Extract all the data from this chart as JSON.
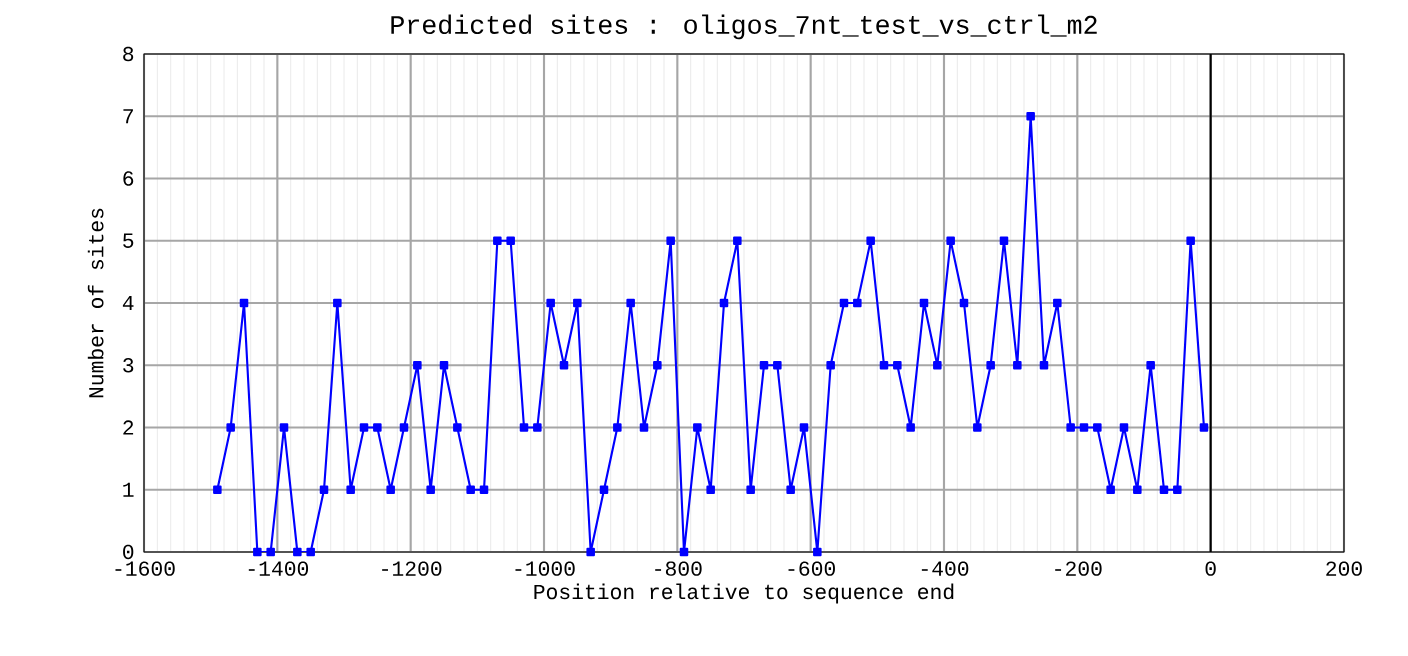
{
  "chart_data": {
    "type": "line",
    "title": "Predicted sites : oligos_7nt_test_vs_ctrl_m2",
    "xlabel": "Position relative to sequence end",
    "ylabel": "Number of sites",
    "x": [
      -1490,
      -1470,
      -1450,
      -1430,
      -1410,
      -1390,
      -1370,
      -1350,
      -1330,
      -1310,
      -1290,
      -1270,
      -1250,
      -1230,
      -1210,
      -1190,
      -1170,
      -1150,
      -1130,
      -1110,
      -1090,
      -1070,
      -1050,
      -1030,
      -1010,
      -990,
      -970,
      -950,
      -930,
      -910,
      -890,
      -870,
      -850,
      -830,
      -810,
      -790,
      -770,
      -750,
      -730,
      -710,
      -690,
      -670,
      -650,
      -630,
      -610,
      -590,
      -570,
      -550,
      -530,
      -510,
      -490,
      -470,
      -450,
      -430,
      -410,
      -390,
      -370,
      -350,
      -330,
      -310,
      -290,
      -270,
      -250,
      -230,
      -210,
      -190,
      -170,
      -150,
      -130,
      -110,
      -90,
      -70,
      -50,
      -30,
      -10
    ],
    "series": [
      {
        "color": "#0000ff",
        "values": [
          1,
          2,
          4,
          0,
          0,
          2,
          0,
          0,
          1,
          4,
          1,
          2,
          2,
          1,
          2,
          3,
          1,
          3,
          2,
          1,
          1,
          5,
          5,
          2,
          2,
          4,
          3,
          4,
          0,
          1,
          2,
          4,
          2,
          3,
          5,
          0,
          2,
          1,
          4,
          5,
          1,
          3,
          3,
          1,
          2,
          0,
          3,
          4,
          4,
          5,
          3,
          3,
          2,
          4,
          3,
          5,
          4,
          2,
          3,
          5,
          3,
          7,
          3,
          4,
          2,
          2,
          2,
          1,
          2,
          1,
          3,
          1,
          1,
          5,
          2
        ]
      }
    ],
    "xlim": [
      -1600,
      200
    ],
    "xticks": [
      -1600,
      -1400,
      -1200,
      -1000,
      -800,
      -600,
      -400,
      -200,
      0,
      200
    ],
    "ylim": [
      0,
      8
    ],
    "yticks": [
      0,
      1,
      2,
      3,
      4,
      5,
      6,
      7,
      8
    ],
    "grid": true,
    "marker": "square",
    "line_style": "solid",
    "ref_lines": [
      {
        "axis": "x",
        "value": 0,
        "color": "#000000"
      }
    ]
  }
}
